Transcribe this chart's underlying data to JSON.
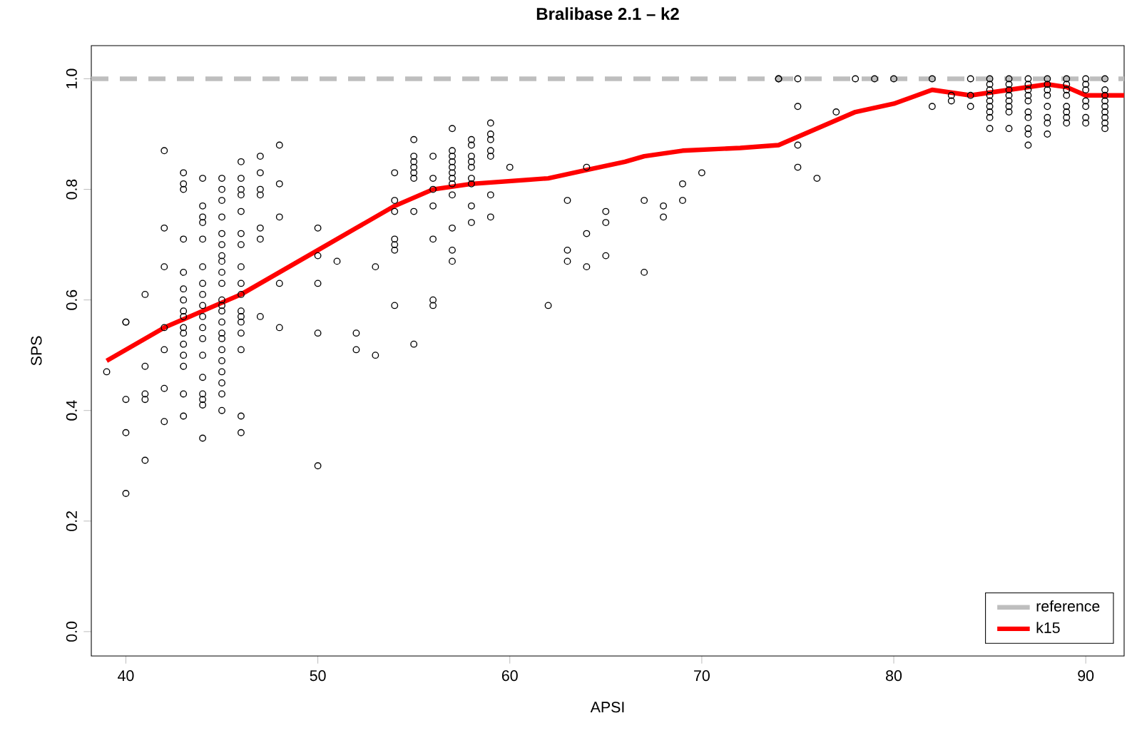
{
  "chart_data": {
    "type": "scatter",
    "title": "Bralibase 2.1 – k2",
    "xlabel": "APSI",
    "ylabel": "SPS",
    "xlim": [
      38.2,
      92
    ],
    "ylim": [
      -0.044,
      1.06
    ],
    "xticks": [
      40,
      50,
      60,
      70,
      80,
      90
    ],
    "yticks": [
      {
        "value": 0,
        "label": "0.0"
      },
      {
        "value": 0.2,
        "label": "0.2"
      },
      {
        "value": 0.4,
        "label": "0.4"
      },
      {
        "value": 0.6,
        "label": "0.6"
      },
      {
        "value": 0.8,
        "label": "0.8"
      },
      {
        "value": 1.0,
        "label": "1.0"
      }
    ],
    "grid": false,
    "legend": "bottom right",
    "series": [
      {
        "color": "#000000",
        "marker": "circle",
        "x": [
          39,
          40,
          40,
          40,
          40,
          40,
          41,
          41,
          41,
          41,
          41,
          42,
          42,
          42,
          42,
          42,
          42,
          42,
          43,
          43,
          43,
          43,
          43,
          43,
          43,
          43,
          43,
          43,
          43,
          43,
          43,
          43,
          43,
          43,
          44,
          44,
          44,
          44,
          44,
          44,
          44,
          44,
          44,
          44,
          44,
          44,
          44,
          44,
          44,
          44,
          44,
          44,
          45,
          45,
          45,
          45,
          45,
          45,
          45,
          45,
          45,
          45,
          45,
          45,
          45,
          45,
          45,
          45,
          45,
          45,
          45,
          45,
          45,
          45,
          46,
          46,
          46,
          46,
          46,
          46,
          46,
          46,
          46,
          46,
          46,
          46,
          46,
          46,
          46,
          46,
          46,
          47,
          47,
          47,
          47,
          47,
          47,
          47,
          48,
          48,
          48,
          48,
          48,
          50,
          50,
          50,
          50,
          50,
          51,
          52,
          52,
          53,
          53,
          54,
          54,
          54,
          54,
          54,
          54,
          54,
          55,
          55,
          55,
          55,
          55,
          55,
          55,
          55,
          56,
          56,
          56,
          56,
          56,
          56,
          56,
          57,
          57,
          57,
          57,
          57,
          57,
          57,
          57,
          57,
          57,
          57,
          57,
          58,
          58,
          58,
          58,
          58,
          58,
          58,
          58,
          58,
          59,
          59,
          59,
          59,
          59,
          59,
          59,
          60,
          62,
          63,
          63,
          63,
          64,
          64,
          64,
          65,
          65,
          65,
          67,
          67,
          68,
          68,
          69,
          69,
          70,
          74,
          74,
          75,
          75,
          75,
          75,
          76,
          77,
          78,
          79,
          80,
          82,
          82,
          83,
          83,
          84,
          84,
          84,
          85,
          85,
          85,
          85,
          85,
          85,
          85,
          85,
          85,
          86,
          86,
          86,
          86,
          86,
          86,
          86,
          86,
          87,
          87,
          87,
          87,
          87,
          87,
          87,
          87,
          87,
          87,
          88,
          88,
          88,
          88,
          88,
          88,
          88,
          88,
          89,
          89,
          89,
          89,
          89,
          89,
          89,
          89,
          90,
          90,
          90,
          90,
          90,
          90,
          90,
          91,
          91,
          91,
          91,
          91,
          91,
          91,
          91,
          91
        ],
        "values": [
          0.47,
          0.56,
          0.56,
          0.42,
          0.36,
          0.25,
          0.61,
          0.48,
          0.43,
          0.42,
          0.31,
          0.87,
          0.73,
          0.66,
          0.55,
          0.51,
          0.44,
          0.38,
          0.83,
          0.81,
          0.8,
          0.71,
          0.65,
          0.62,
          0.6,
          0.58,
          0.57,
          0.55,
          0.54,
          0.52,
          0.5,
          0.48,
          0.43,
          0.39,
          0.82,
          0.77,
          0.75,
          0.74,
          0.71,
          0.66,
          0.63,
          0.61,
          0.59,
          0.57,
          0.55,
          0.53,
          0.5,
          0.46,
          0.43,
          0.42,
          0.41,
          0.35,
          0.82,
          0.8,
          0.78,
          0.75,
          0.72,
          0.7,
          0.68,
          0.67,
          0.65,
          0.63,
          0.6,
          0.59,
          0.58,
          0.56,
          0.54,
          0.53,
          0.51,
          0.49,
          0.47,
          0.45,
          0.43,
          0.4,
          0.85,
          0.82,
          0.8,
          0.79,
          0.76,
          0.72,
          0.7,
          0.66,
          0.63,
          0.61,
          0.58,
          0.57,
          0.56,
          0.54,
          0.51,
          0.39,
          0.36,
          0.86,
          0.83,
          0.8,
          0.79,
          0.73,
          0.71,
          0.57,
          0.88,
          0.81,
          0.75,
          0.63,
          0.55,
          0.73,
          0.68,
          0.63,
          0.54,
          0.3,
          0.67,
          0.54,
          0.51,
          0.66,
          0.5,
          0.83,
          0.78,
          0.76,
          0.71,
          0.7,
          0.69,
          0.59,
          0.89,
          0.86,
          0.85,
          0.84,
          0.83,
          0.82,
          0.76,
          0.52,
          0.86,
          0.82,
          0.8,
          0.77,
          0.71,
          0.6,
          0.59,
          0.91,
          0.87,
          0.86,
          0.85,
          0.84,
          0.83,
          0.82,
          0.81,
          0.79,
          0.73,
          0.69,
          0.67,
          0.89,
          0.88,
          0.86,
          0.85,
          0.84,
          0.82,
          0.81,
          0.77,
          0.74,
          0.92,
          0.9,
          0.89,
          0.87,
          0.86,
          0.79,
          0.75,
          0.84,
          0.59,
          0.78,
          0.69,
          0.67,
          0.84,
          0.72,
          0.66,
          0.76,
          0.74,
          0.68,
          0.78,
          0.65,
          0.77,
          0.75,
          0.81,
          0.78,
          0.83,
          1.0,
          1.0,
          1.0,
          0.95,
          0.88,
          0.84,
          0.82,
          0.94,
          1.0,
          1.0,
          1.0,
          1.0,
          0.95,
          0.97,
          0.96,
          1.0,
          0.97,
          0.95,
          1.0,
          0.99,
          0.98,
          0.97,
          0.96,
          0.95,
          0.94,
          0.93,
          0.91,
          1.0,
          0.99,
          0.98,
          0.97,
          0.96,
          0.95,
          0.94,
          0.91,
          1.0,
          0.99,
          0.98,
          0.97,
          0.96,
          0.94,
          0.93,
          0.91,
          0.9,
          0.88,
          1.0,
          0.99,
          0.98,
          0.97,
          0.95,
          0.93,
          0.92,
          0.9,
          1.0,
          0.99,
          0.98,
          0.97,
          0.95,
          0.94,
          0.93,
          0.92,
          1.0,
          0.99,
          0.98,
          0.96,
          0.95,
          0.93,
          0.92,
          1.0,
          0.98,
          0.97,
          0.96,
          0.95,
          0.94,
          0.93,
          0.92,
          0.91
        ]
      },
      {
        "type": "line",
        "name": "reference",
        "color": "#bebebe",
        "line_style": "dashed",
        "marker": "none",
        "x": [
          38.2,
          92
        ],
        "values": [
          1.0,
          1.0
        ]
      },
      {
        "type": "line",
        "name": "k15",
        "color": "#ff0000",
        "line_style": "solid",
        "marker": "none",
        "x": [
          39,
          40,
          42,
          44,
          46,
          48,
          50,
          52,
          54,
          56,
          58,
          60,
          62,
          64,
          66,
          67,
          69,
          72,
          74,
          76,
          78,
          80,
          82,
          84,
          86,
          88,
          89,
          90,
          92
        ],
        "values": [
          0.49,
          0.51,
          0.55,
          0.58,
          0.61,
          0.65,
          0.69,
          0.73,
          0.77,
          0.8,
          0.81,
          0.815,
          0.82,
          0.835,
          0.85,
          0.86,
          0.87,
          0.875,
          0.88,
          0.91,
          0.94,
          0.955,
          0.98,
          0.97,
          0.98,
          0.99,
          0.985,
          0.97,
          0.97
        ]
      }
    ]
  }
}
